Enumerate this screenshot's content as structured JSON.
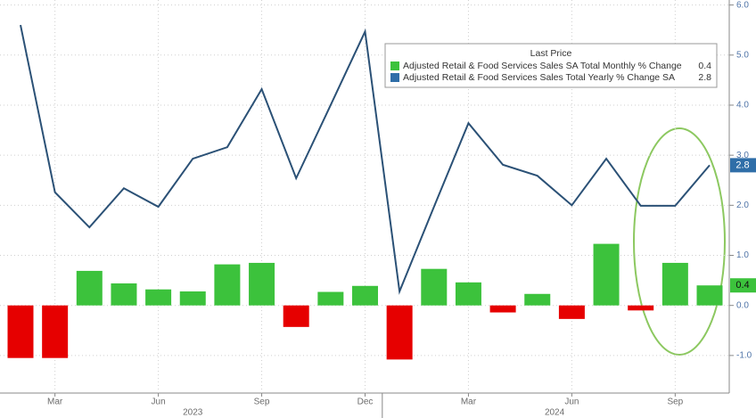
{
  "chart_data": {
    "type": "bar",
    "categories": [
      null,
      "Mar",
      null,
      null,
      "Jun",
      null,
      null,
      "Sep",
      null,
      null,
      "Dec",
      null,
      null,
      "Mar",
      null,
      null,
      "Jun",
      null,
      null,
      "Sep",
      null
    ],
    "year_labels": [
      "2023",
      "2024"
    ],
    "legend_title": "Last Price",
    "series": [
      {
        "name": "Adjusted Retail & Food Services Sales SA Total Monthly % Change",
        "type": "bar",
        "color": "#3cc23c",
        "negative_color": "#e60000",
        "values": [
          -1.05,
          -1.05,
          0.69,
          0.44,
          0.32,
          0.28,
          0.82,
          0.85,
          -0.43,
          0.27,
          0.39,
          -1.08,
          0.73,
          0.46,
          -0.14,
          0.23,
          -0.27,
          1.23,
          -0.1,
          0.85,
          0.4
        ],
        "last_label": "0.4"
      },
      {
        "name": "Adjusted Retail & Food Services Sales Total Yearly % Change SA",
        "type": "line",
        "color": "#2b5176",
        "values": [
          5.6,
          2.26,
          1.56,
          2.34,
          1.97,
          2.93,
          3.16,
          4.32,
          2.54,
          4.0,
          5.47,
          0.28,
          1.97,
          3.64,
          2.81,
          2.59,
          2.0,
          2.93,
          1.99,
          1.99,
          2.8
        ],
        "last_label": "2.8"
      }
    ],
    "ylim": [
      -1.75,
      6.1
    ],
    "yticks": [
      {
        "value": 6,
        "label": "6.0"
      },
      {
        "value": 5,
        "label": "5.0"
      },
      {
        "value": 4,
        "label": "4.0"
      },
      {
        "value": 3,
        "label": "3.0"
      },
      {
        "value": 2,
        "label": "2.0"
      },
      {
        "value": 1,
        "label": "1.0"
      },
      {
        "value": 0,
        "label": "0.0"
      },
      {
        "value": -1,
        "label": "-1.0"
      }
    ],
    "grid": true
  }
}
